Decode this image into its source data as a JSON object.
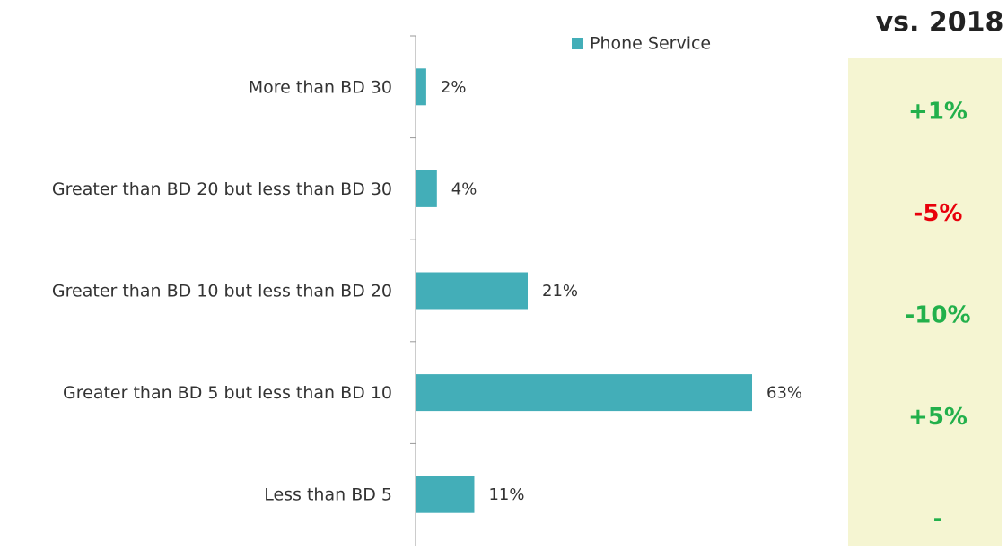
{
  "chart_data": {
    "type": "bar",
    "orientation": "horizontal",
    "categories": [
      "More than BD 30",
      "Greater than BD 20 but less than BD 30",
      "Greater than BD 10 but less than BD 20",
      "Greater than BD 5 but less than BD 10",
      "Less than BD 5"
    ],
    "series": [
      {
        "name": "Phone Service",
        "color": "#43aeb8",
        "values": [
          2,
          4,
          21,
          63,
          11
        ],
        "value_labels": [
          "2%",
          "4%",
          "21%",
          "63%",
          "11%"
        ]
      }
    ],
    "legend": "top"
  },
  "comparison": {
    "title": "vs. 2018",
    "labels": [
      "+1%",
      "-5%",
      "-10%",
      "+5%",
      "-"
    ],
    "colors": [
      "#22b04b",
      "#e8000b",
      "#22b04b",
      "#22b04b",
      "#22b04b"
    ],
    "background": "#f5f5d2"
  }
}
